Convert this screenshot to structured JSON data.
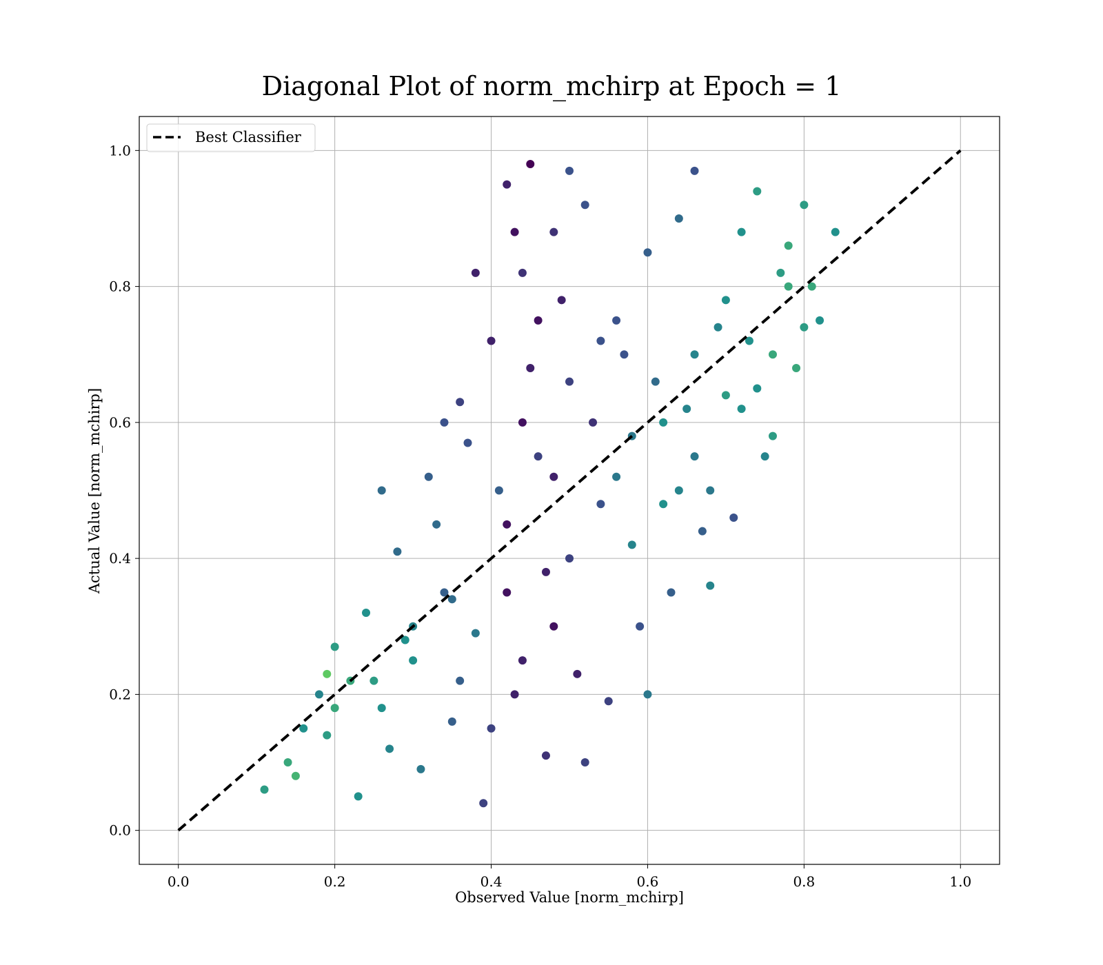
{
  "chart_data": {
    "type": "scatter",
    "title": "Diagonal Plot of norm_mchirp at Epoch = 1",
    "xlabel": "Observed Value [norm_mchirp]",
    "ylabel": "Actual Value [norm_mchirp]",
    "xlim": [
      -0.05,
      1.05
    ],
    "ylim": [
      -0.05,
      1.05
    ],
    "xticks": [
      "0.0",
      "0.2",
      "0.4",
      "0.6",
      "0.8",
      "1.0"
    ],
    "yticks": [
      "0.0",
      "0.2",
      "0.4",
      "0.6",
      "0.8",
      "1.0"
    ],
    "grid": true,
    "legend": {
      "placement": "upper-left",
      "entries": [
        "Best Classifier"
      ]
    },
    "colormap": [
      "#440154",
      "#3b528b",
      "#21918c",
      "#5ec962",
      "#fde725"
    ],
    "reference_line": {
      "name": "Best Classifier",
      "style": "dashed",
      "color": "#000000",
      "x": [
        0.0,
        1.0
      ],
      "y": [
        0.0,
        1.0
      ]
    },
    "series": [
      {
        "x": [
          0.11,
          0.14,
          0.16,
          0.18,
          0.2,
          0.22,
          0.24,
          0.26,
          0.28,
          0.3,
          0.32,
          0.34,
          0.36,
          0.38,
          0.4,
          0.42,
          0.44,
          0.46,
          0.48,
          0.5,
          0.52,
          0.54,
          0.56,
          0.58,
          0.6,
          0.62,
          0.64,
          0.66,
          0.68,
          0.7,
          0.72,
          0.74,
          0.76,
          0.78,
          0.8,
          0.82,
          0.84,
          0.15,
          0.19,
          0.23,
          0.27,
          0.31,
          0.35,
          0.39,
          0.43,
          0.47,
          0.51,
          0.55,
          0.59,
          0.63,
          0.67,
          0.71,
          0.75,
          0.79,
          0.26,
          0.34,
          0.42,
          0.5,
          0.58,
          0.66,
          0.74,
          0.38,
          0.44,
          0.48,
          0.54,
          0.62,
          0.7,
          0.78,
          0.29,
          0.33,
          0.37,
          0.41,
          0.45,
          0.49,
          0.53,
          0.57,
          0.61,
          0.65,
          0.69,
          0.73,
          0.77,
          0.81,
          0.4,
          0.42,
          0.44,
          0.46,
          0.48,
          0.43,
          0.45,
          0.47,
          0.36,
          0.52,
          0.6,
          0.68,
          0.76,
          0.2,
          0.25,
          0.3,
          0.35,
          0.56,
          0.64,
          0.72,
          0.8,
          0.19,
          0.5,
          0.66
        ],
        "y": [
          0.06,
          0.1,
          0.15,
          0.2,
          0.27,
          0.22,
          0.32,
          0.18,
          0.41,
          0.25,
          0.52,
          0.35,
          0.63,
          0.29,
          0.72,
          0.95,
          0.82,
          0.55,
          0.88,
          0.66,
          0.92,
          0.48,
          0.75,
          0.58,
          0.85,
          0.6,
          0.9,
          0.7,
          0.5,
          0.78,
          0.88,
          0.94,
          0.7,
          0.8,
          0.92,
          0.75,
          0.88,
          0.08,
          0.14,
          0.05,
          0.12,
          0.09,
          0.16,
          0.04,
          0.2,
          0.11,
          0.23,
          0.19,
          0.3,
          0.35,
          0.44,
          0.46,
          0.55,
          0.68,
          0.5,
          0.6,
          0.35,
          0.4,
          0.42,
          0.55,
          0.65,
          0.82,
          0.6,
          0.3,
          0.72,
          0.48,
          0.64,
          0.86,
          0.28,
          0.45,
          0.57,
          0.5,
          0.68,
          0.78,
          0.6,
          0.7,
          0.66,
          0.62,
          0.74,
          0.72,
          0.82,
          0.8,
          0.15,
          0.45,
          0.25,
          0.75,
          0.52,
          0.88,
          0.98,
          0.38,
          0.22,
          0.1,
          0.2,
          0.36,
          0.58,
          0.18,
          0.22,
          0.3,
          0.34,
          0.52,
          0.5,
          0.62,
          0.74,
          0.23,
          0.97,
          0.97
        ],
        "c": [
          0.55,
          0.6,
          0.5,
          0.45,
          0.55,
          0.6,
          0.5,
          0.5,
          0.35,
          0.5,
          0.3,
          0.3,
          0.2,
          0.4,
          0.1,
          0.1,
          0.15,
          0.2,
          0.15,
          0.2,
          0.25,
          0.25,
          0.25,
          0.4,
          0.3,
          0.5,
          0.35,
          0.45,
          0.4,
          0.5,
          0.5,
          0.55,
          0.6,
          0.6,
          0.55,
          0.5,
          0.5,
          0.65,
          0.55,
          0.5,
          0.45,
          0.4,
          0.3,
          0.2,
          0.1,
          0.15,
          0.1,
          0.2,
          0.25,
          0.3,
          0.3,
          0.25,
          0.45,
          0.6,
          0.35,
          0.25,
          0.05,
          0.2,
          0.45,
          0.4,
          0.5,
          0.1,
          0.05,
          0.05,
          0.25,
          0.5,
          0.55,
          0.6,
          0.5,
          0.35,
          0.25,
          0.3,
          0.1,
          0.1,
          0.15,
          0.25,
          0.35,
          0.45,
          0.45,
          0.5,
          0.55,
          0.6,
          0.2,
          0.05,
          0.1,
          0.05,
          0.1,
          0.05,
          0.0,
          0.1,
          0.3,
          0.2,
          0.4,
          0.45,
          0.55,
          0.6,
          0.55,
          0.45,
          0.35,
          0.4,
          0.45,
          0.5,
          0.55,
          0.75,
          0.25,
          0.25
        ]
      }
    ]
  }
}
